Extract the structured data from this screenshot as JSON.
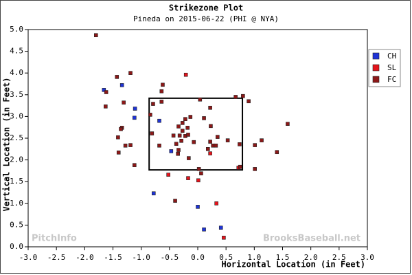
{
  "chart_data": {
    "type": "scatter",
    "title": "Strikezone Plot",
    "subtitle": "Pineda on 2015-06-22 (PHI @ NYA)",
    "x_label": "Horizontal Location (in Feet)",
    "y_label": "Vertical Location (in Feet)",
    "watermarks": [
      "PitchInfo",
      "BrooksBaseball.net"
    ],
    "xlim": [
      -3.0,
      3.0
    ],
    "xticks": [
      {
        "value": -3.0,
        "label": "-3.0"
      },
      -2.5,
      {
        "value": -2.0,
        "label": "-2.0"
      },
      -1.5,
      {
        "value": -1.0,
        "label": "-1.0"
      },
      -0.5,
      {
        "value": 0.0,
        "label": "0.0"
      },
      0.5,
      {
        "value": 1.0,
        "label": "1.0"
      },
      1.5,
      {
        "value": 2.0,
        "label": "2.0"
      },
      2.5,
      {
        "value": 3.0,
        "label": "3.0"
      }
    ],
    "ylim": [
      0.0,
      5.0
    ],
    "yticks": [
      {
        "value": 0.0,
        "label": "0.0"
      },
      0.5,
      {
        "value": 1.0,
        "label": "1.0"
      },
      1.5,
      {
        "value": 2.0,
        "label": "2.0"
      },
      2.5,
      {
        "value": 3.0,
        "label": "3.0"
      },
      3.5,
      {
        "value": 4.0,
        "label": "4.0"
      },
      4.5,
      {
        "value": 5.0,
        "label": "5.0"
      }
    ],
    "legend": "right",
    "strike_zone": {
      "x": [
        -0.86,
        0.79
      ],
      "y": [
        1.77,
        3.42
      ]
    },
    "series": [
      {
        "name": "CH",
        "color": "#1f33d6",
        "x": [
          -1.66,
          -1.34,
          -1.11,
          -1.12,
          -0.68,
          -0.47,
          -0.78,
          0.0,
          0.11,
          0.41
        ],
        "values": [
          3.61,
          3.72,
          3.18,
          2.97,
          2.9,
          2.2,
          1.23,
          0.92,
          0.4,
          0.44
        ]
      },
      {
        "name": "SL",
        "color": "#e3141c",
        "x": [
          -0.21,
          -0.52,
          -0.17,
          0.01,
          0.33,
          0.46,
          0.72,
          0.22
        ],
        "values": [
          3.96,
          1.66,
          1.58,
          1.53,
          1.0,
          0.21,
          1.82,
          2.15
        ]
      },
      {
        "name": "FC",
        "color": "#8c1818",
        "x": [
          -1.8,
          -1.19,
          -1.43,
          -0.62,
          -0.64,
          -1.62,
          -1.31,
          -1.63,
          -0.64,
          -0.79,
          0.04,
          0.22,
          0.67,
          0.8,
          0.9,
          -0.84,
          -0.13,
          0.11,
          -0.22,
          -0.27,
          -0.34,
          -0.18,
          -0.27,
          0.23,
          -1.34,
          -1.36,
          -1.41,
          -1.28,
          -1.19,
          -1.4,
          -0.81,
          -0.43,
          -0.32,
          -0.22,
          -0.17,
          -0.29,
          -0.38,
          -0.68,
          -0.34,
          -0.35,
          -0.07,
          0.35,
          0.22,
          0.27,
          0.32,
          0.18,
          -0.16,
          0.53,
          0.74,
          1.01,
          1.13,
          1.4,
          1.59,
          -1.12,
          0.02,
          0.06,
          0.75,
          1.01,
          -0.4
        ],
        "values": [
          4.87,
          4.0,
          3.91,
          3.73,
          3.58,
          3.56,
          3.32,
          3.23,
          3.34,
          3.29,
          3.39,
          3.2,
          3.45,
          3.47,
          3.35,
          3.04,
          2.99,
          2.96,
          2.94,
          2.85,
          2.77,
          2.74,
          2.67,
          2.78,
          2.74,
          2.71,
          2.52,
          2.33,
          2.34,
          2.17,
          2.61,
          2.56,
          2.56,
          2.55,
          2.58,
          2.44,
          2.37,
          2.33,
          2.23,
          2.14,
          2.41,
          2.53,
          2.42,
          2.33,
          2.33,
          2.25,
          2.04,
          2.45,
          2.36,
          2.34,
          2.45,
          2.18,
          2.83,
          1.88,
          1.79,
          1.69,
          1.84,
          1.79,
          1.06
        ]
      }
    ]
  }
}
